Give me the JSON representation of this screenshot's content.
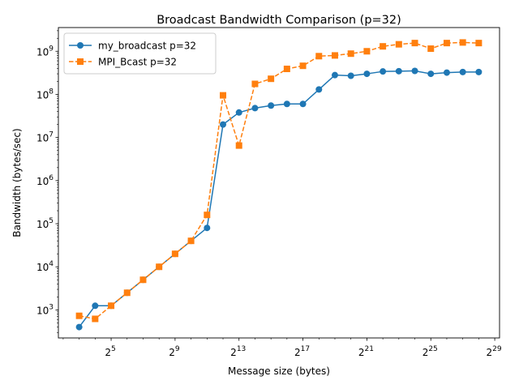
{
  "chart_data": {
    "type": "line",
    "title": "Broadcast Bandwidth Comparison (p=32)",
    "xlabel": "Message size (bytes)",
    "ylabel": "Bandwidth (bytes/sec)",
    "xscale": "log2",
    "yscale": "log10",
    "xlim_exp2": [
      1.7,
      29.3
    ],
    "ylim_exp10": [
      2.35,
      9.55
    ],
    "x_ticks": [
      {
        "base": "2",
        "exp": "5",
        "value_exp2": 5
      },
      {
        "base": "2",
        "exp": "9",
        "value_exp2": 9
      },
      {
        "base": "2",
        "exp": "13",
        "value_exp2": 13
      },
      {
        "base": "2",
        "exp": "17",
        "value_exp2": 17
      },
      {
        "base": "2",
        "exp": "21",
        "value_exp2": 21
      },
      {
        "base": "2",
        "exp": "25",
        "value_exp2": 25
      },
      {
        "base": "2",
        "exp": "29",
        "value_exp2": 29
      }
    ],
    "y_ticks": [
      {
        "base": "10",
        "exp": "3",
        "value_exp10": 3
      },
      {
        "base": "10",
        "exp": "4",
        "value_exp10": 4
      },
      {
        "base": "10",
        "exp": "5",
        "value_exp10": 5
      },
      {
        "base": "10",
        "exp": "6",
        "value_exp10": 6
      },
      {
        "base": "10",
        "exp": "7",
        "value_exp10": 7
      },
      {
        "base": "10",
        "exp": "8",
        "value_exp10": 8
      },
      {
        "base": "10",
        "exp": "9",
        "value_exp10": 9
      }
    ],
    "grid": false,
    "legend_position": "top-left",
    "x_exp2": [
      3,
      4,
      5,
      6,
      7,
      8,
      9,
      10,
      11,
      12,
      13,
      14,
      15,
      16,
      17,
      18,
      19,
      20,
      21,
      22,
      23,
      24,
      25,
      26,
      27,
      28
    ],
    "series": [
      {
        "name": "my_broadcast p=32",
        "color": "#1f77b4",
        "marker": "circle",
        "linestyle": "solid",
        "values": [
          400,
          1250,
          1250,
          2500,
          5000,
          10000,
          20000,
          40000,
          80000,
          20000000,
          38000000,
          48000000,
          55000000,
          60000000,
          60000000,
          130000000,
          280000000,
          270000000,
          300000000,
          340000000,
          345000000,
          350000000,
          300000000,
          320000000,
          330000000,
          330000000
        ]
      },
      {
        "name": "MPI_Bcast p=32",
        "color": "#ff7f0e",
        "marker": "square",
        "linestyle": "dashed",
        "values": [
          730,
          620,
          1250,
          2500,
          5000,
          10000,
          20000,
          40000,
          160000,
          95000000,
          6500000,
          175000000,
          230000000,
          390000000,
          460000000,
          770000000,
          800000000,
          880000000,
          1000000000,
          1300000000,
          1450000000,
          1550000000,
          1150000000,
          1550000000,
          1600000000,
          1550000000
        ]
      }
    ]
  }
}
